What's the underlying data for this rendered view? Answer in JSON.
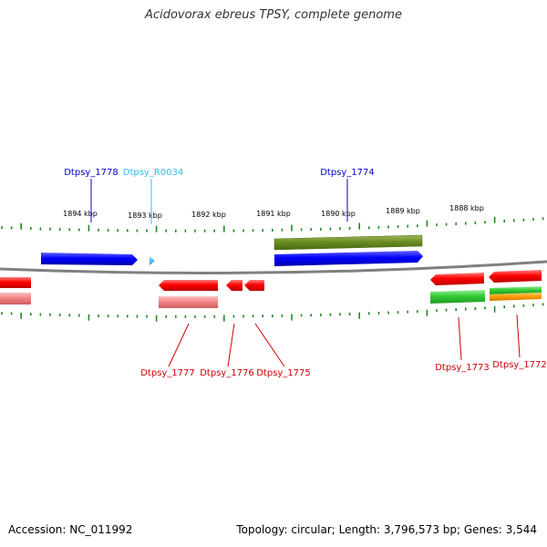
{
  "title": "Acidovorax ebreus TPSY, complete genome",
  "footer": {
    "accession": "Accession: NC_011992",
    "summary": "Topology: circular; Length: 3,796,573 bp; Genes: 3,544"
  },
  "kbp_labels": [
    "1894 kbp",
    "1893 kbp",
    "1892 kbp",
    "1891 kbp",
    "1890 kbp",
    "1889 kbp",
    "1888 kbp"
  ],
  "gene_labels": {
    "above": [
      {
        "name": "Dtpsy_1778",
        "color": "#0000cc"
      },
      {
        "name": "Dtpsy_R0034",
        "color": "#33bbee"
      },
      {
        "name": "Dtpsy_1774",
        "color": "#0000cc"
      }
    ],
    "below": [
      {
        "name": "Dtpsy_1777",
        "color": "#cc0000"
      },
      {
        "name": "Dtpsy_1776",
        "color": "#cc0000"
      },
      {
        "name": "Dtpsy_1775",
        "color": "#cc0000"
      },
      {
        "name": "Dtpsy_1773",
        "color": "#cc0000"
      },
      {
        "name": "Dtpsy_1772",
        "color": "#cc0000"
      }
    ]
  },
  "colors": {
    "backbone": "#808080",
    "tick": "#228822",
    "forward_gene": "#0000ff",
    "reverse_gene": "#ff0000",
    "reverse_gene_light": "#f08080",
    "olive_feature": "#6b8e23",
    "green_feature": "#33cc33",
    "orange_feature": "#ff9900"
  }
}
